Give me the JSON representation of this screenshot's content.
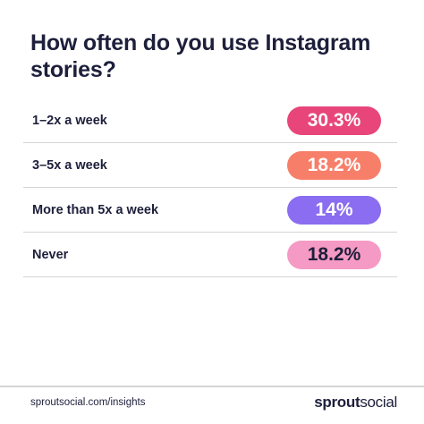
{
  "chart_data": {
    "type": "table",
    "title": "How often do you use Instagram stories?",
    "categories": [
      "1–2x a week",
      "3–5x a week",
      "More than 5x a week",
      "Never"
    ],
    "values": [
      30.3,
      18.2,
      14,
      18.2
    ],
    "value_labels": [
      "30.3%",
      "18.2%",
      "14%",
      "18.2%"
    ],
    "colors": [
      "#e8457a",
      "#f77f6a",
      "#8a6df0",
      "#f59ac4"
    ]
  },
  "footer": {
    "link": "sproutsocial.com/insights",
    "brand_bold": "sprout",
    "brand_regular": "social"
  }
}
